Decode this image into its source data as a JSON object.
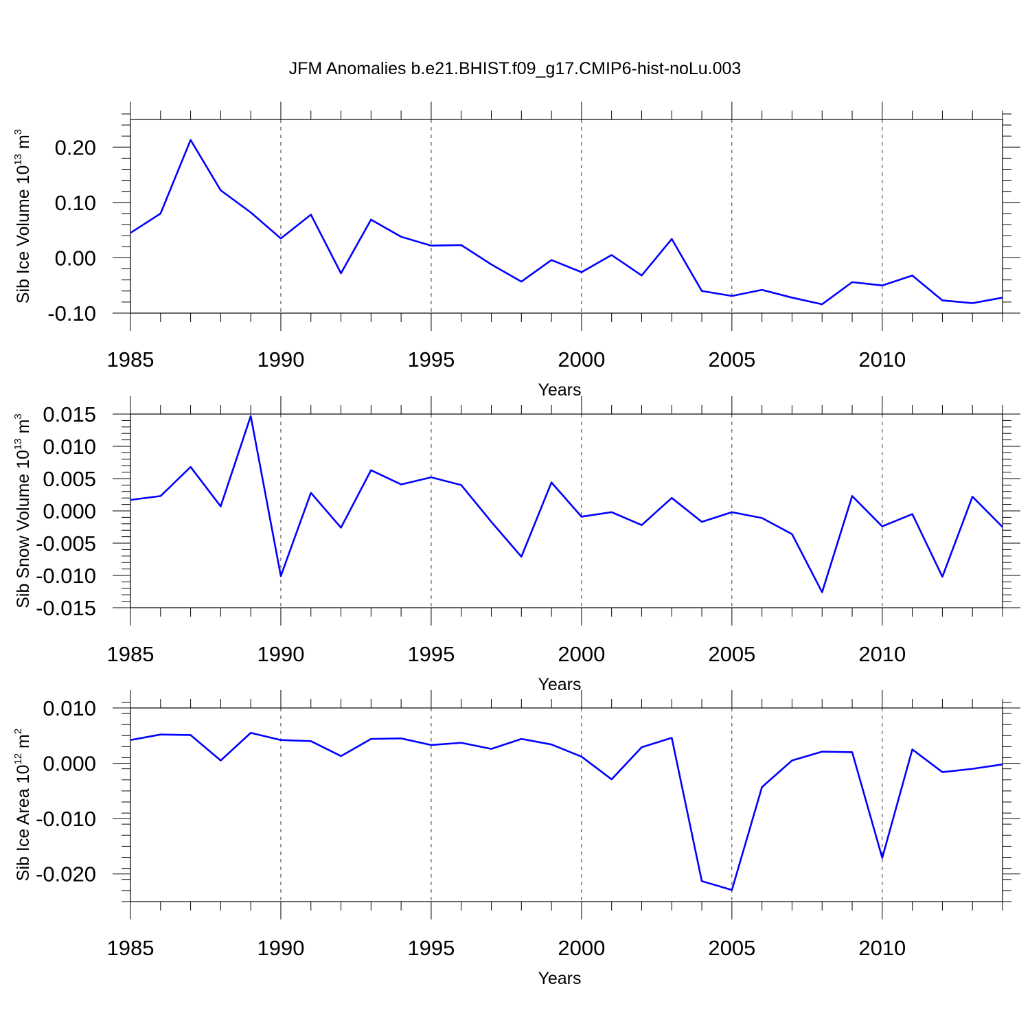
{
  "title": "JFM Anomalies b.e21.BHIST.f09_g17.CMIP6-hist-noLu.003",
  "colors": {
    "line": "#0000ff",
    "axis": "#000000",
    "grid": "#000000"
  },
  "chart_data": [
    {
      "type": "line",
      "ylabel": "Sib Ice Volume 10",
      "ylabel_exp": "13",
      "ylabel_unit": " m",
      "ylabel_unit_exp": "3",
      "xlabel": "Years",
      "xlim": [
        1985,
        2014
      ],
      "ylim": [
        -0.1,
        0.25
      ],
      "yticks": [
        -0.1,
        0.0,
        0.1,
        0.2
      ],
      "ytick_labels": [
        "-0.10",
        "0.00",
        "0.10",
        "0.20"
      ],
      "xticks": [
        1985,
        1990,
        1995,
        2000,
        2005,
        2010
      ],
      "xtick_labels": [
        "1985",
        "1990",
        "1995",
        "2000",
        "2005",
        "2010"
      ],
      "x": [
        1985,
        1986,
        1987,
        1988,
        1989,
        1990,
        1991,
        1992,
        1993,
        1994,
        1995,
        1996,
        1997,
        1998,
        1999,
        2000,
        2001,
        2002,
        2003,
        2004,
        2005,
        2006,
        2007,
        2008,
        2009,
        2010,
        2011,
        2012,
        2013,
        2014
      ],
      "values": [
        0.045,
        0.08,
        0.213,
        0.122,
        0.082,
        0.035,
        0.078,
        -0.028,
        0.069,
        0.038,
        0.022,
        0.023,
        -0.012,
        -0.043,
        -0.004,
        -0.026,
        0.005,
        -0.032,
        0.034,
        -0.06,
        -0.069,
        -0.058,
        -0.072,
        -0.084,
        -0.044,
        -0.05,
        -0.032,
        -0.077,
        -0.082,
        -0.072
      ]
    },
    {
      "type": "line",
      "ylabel": "Sib Snow Volume 10",
      "ylabel_exp": "13",
      "ylabel_unit": " m",
      "ylabel_unit_exp": "3",
      "xlabel": "Years",
      "xlim": [
        1985,
        2014
      ],
      "ylim": [
        -0.015,
        0.015
      ],
      "yticks": [
        -0.015,
        -0.01,
        -0.005,
        0.0,
        0.005,
        0.01,
        0.015
      ],
      "ytick_labels": [
        "-0.015",
        "-0.010",
        "-0.005",
        "0.000",
        "0.005",
        "0.010",
        "0.015"
      ],
      "xticks": [
        1985,
        1990,
        1995,
        2000,
        2005,
        2010
      ],
      "xtick_labels": [
        "1985",
        "1990",
        "1995",
        "2000",
        "2005",
        "2010"
      ],
      "x": [
        1985,
        1986,
        1987,
        1988,
        1989,
        1990,
        1991,
        1992,
        1993,
        1994,
        1995,
        1996,
        1997,
        1998,
        1999,
        2000,
        2001,
        2002,
        2003,
        2004,
        2005,
        2006,
        2007,
        2008,
        2009,
        2010,
        2011,
        2012,
        2013,
        2014
      ],
      "values": [
        0.0017,
        0.0023,
        0.0068,
        0.0007,
        0.0147,
        -0.0101,
        0.0028,
        -0.0026,
        0.0063,
        0.0041,
        0.0052,
        0.004,
        -0.0017,
        -0.0071,
        0.0044,
        -0.0009,
        -0.0002,
        -0.0022,
        0.002,
        -0.0017,
        -0.0002,
        -0.0011,
        -0.0036,
        -0.0126,
        0.0023,
        -0.0024,
        -0.0005,
        -0.0102,
        0.0022,
        -0.0025
      ]
    },
    {
      "type": "line",
      "ylabel": "Sib Ice Area 10",
      "ylabel_exp": "12",
      "ylabel_unit": " m",
      "ylabel_unit_exp": "2",
      "xlabel": "Years",
      "xlim": [
        1985,
        2014
      ],
      "ylim": [
        -0.025,
        0.01
      ],
      "yticks": [
        -0.02,
        -0.01,
        0.0,
        0.01
      ],
      "ytick_labels": [
        "-0.020",
        "-0.010",
        "0.000",
        "0.010"
      ],
      "xticks": [
        1985,
        1990,
        1995,
        2000,
        2005,
        2010
      ],
      "xtick_labels": [
        "1985",
        "1990",
        "1995",
        "2000",
        "2005",
        "2010"
      ],
      "x": [
        1985,
        1986,
        1987,
        1988,
        1989,
        1990,
        1991,
        1992,
        1993,
        1994,
        1995,
        1996,
        1997,
        1998,
        1999,
        2000,
        2001,
        2002,
        2003,
        2004,
        2005,
        2006,
        2007,
        2008,
        2009,
        2010,
        2011,
        2012,
        2013,
        2014
      ],
      "values": [
        0.0042,
        0.0052,
        0.0051,
        0.0005,
        0.0055,
        0.0042,
        0.004,
        0.0013,
        0.0044,
        0.0045,
        0.0033,
        0.0037,
        0.0026,
        0.0044,
        0.0034,
        0.0012,
        -0.0029,
        0.0029,
        0.0046,
        -0.0213,
        -0.0229,
        -0.0043,
        0.0005,
        0.0021,
        0.002,
        -0.0171,
        0.0025,
        -0.0016,
        -0.001,
        -0.0002
      ]
    }
  ]
}
